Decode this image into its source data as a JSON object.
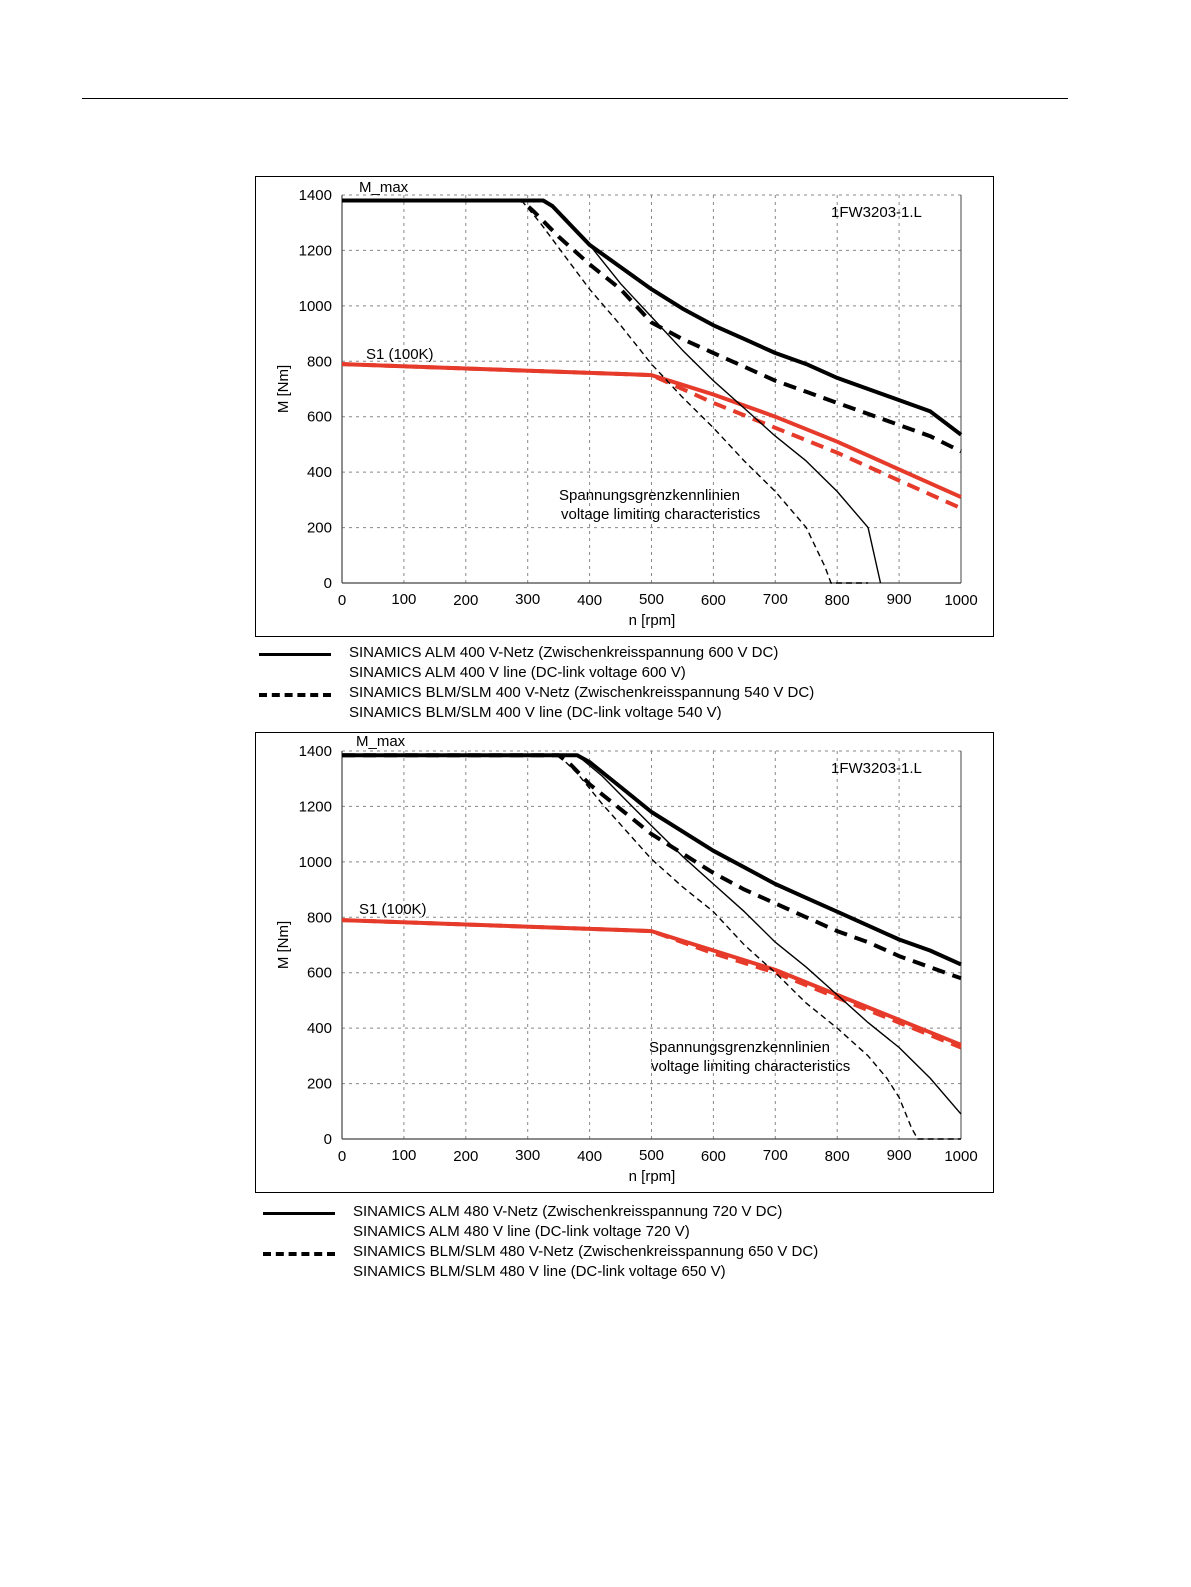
{
  "chart_data": [
    {
      "type": "line",
      "model": "1FW3203-1.L",
      "ylabel": "M [Nm]",
      "xlabel": "n [rpm]",
      "xlim": [
        0,
        1000
      ],
      "ylim": [
        0,
        1400
      ],
      "x_ticks": [
        "0",
        "100",
        "200",
        "300",
        "400",
        "500",
        "600",
        "700",
        "800",
        "900",
        "1000"
      ],
      "y_ticks": [
        "0",
        "200",
        "400",
        "600",
        "800",
        "1000",
        "1200",
        "1400"
      ],
      "grid": true,
      "labels": {
        "m_max": "M_max",
        "s1": "S1 (100K)",
        "annotation_de": "Spannungsgrenzkennlinien",
        "annotation_en": "voltage limiting characteristics"
      },
      "series": [
        {
          "style": "solid-thick",
          "color": "#000000",
          "points": [
            [
              0,
              1380
            ],
            [
              325,
              1380
            ],
            [
              340,
              1360
            ],
            [
              370,
              1290
            ],
            [
              400,
              1220
            ],
            [
              450,
              1140
            ],
            [
              500,
              1060
            ],
            [
              550,
              990
            ],
            [
              600,
              930
            ],
            [
              650,
              880
            ],
            [
              700,
              830
            ],
            [
              750,
              790
            ],
            [
              800,
              740
            ],
            [
              850,
              700
            ],
            [
              900,
              660
            ],
            [
              950,
              620
            ],
            [
              1000,
              535
            ]
          ]
        },
        {
          "style": "dashed-thick",
          "color": "#000000",
          "points": [
            [
              0,
              1380
            ],
            [
              290,
              1380
            ],
            [
              310,
              1340
            ],
            [
              350,
              1250
            ],
            [
              400,
              1150
            ],
            [
              450,
              1060
            ],
            [
              500,
              940
            ],
            [
              550,
              880
            ],
            [
              600,
              830
            ],
            [
              650,
              780
            ],
            [
              700,
              730
            ],
            [
              750,
              690
            ],
            [
              800,
              650
            ],
            [
              850,
              610
            ],
            [
              900,
              570
            ],
            [
              950,
              530
            ],
            [
              1000,
              475
            ]
          ]
        },
        {
          "style": "solid-red",
          "color": "#e63a2a",
          "points": [
            [
              0,
              790
            ],
            [
              500,
              750
            ],
            [
              600,
              680
            ],
            [
              700,
              600
            ],
            [
              800,
              510
            ],
            [
              900,
              410
            ],
            [
              1000,
              310
            ]
          ]
        },
        {
          "style": "dashed-red",
          "color": "#e63a2a",
          "points": [
            [
              0,
              790
            ],
            [
              500,
              750
            ],
            [
              600,
              650
            ],
            [
              700,
              560
            ],
            [
              800,
              470
            ],
            [
              900,
              370
            ],
            [
              1000,
              270
            ]
          ]
        },
        {
          "style": "solid-thin",
          "color": "#000000",
          "points": [
            [
              325,
              1380
            ],
            [
              360,
              1320
            ],
            [
              400,
              1220
            ],
            [
              450,
              1080
            ],
            [
              500,
              960
            ],
            [
              550,
              840
            ],
            [
              600,
              730
            ],
            [
              650,
              630
            ],
            [
              700,
              530
            ],
            [
              750,
              440
            ],
            [
              800,
              330
            ],
            [
              850,
              200
            ],
            [
              870,
              0
            ]
          ]
        },
        {
          "style": "dashed-thin",
          "color": "#000000",
          "points": [
            [
              290,
              1380
            ],
            [
              320,
              1300
            ],
            [
              360,
              1180
            ],
            [
              400,
              1060
            ],
            [
              450,
              930
            ],
            [
              500,
              790
            ],
            [
              550,
              670
            ],
            [
              600,
              560
            ],
            [
              650,
              440
            ],
            [
              700,
              330
            ],
            [
              750,
              200
            ],
            [
              780,
              60
            ],
            [
              790,
              0
            ],
            [
              850,
              0
            ]
          ]
        }
      ],
      "legend": [
        {
          "style": "solid",
          "line1": "SINAMICS ALM  400 V-Netz (Zwischenkreisspannung 600 V DC)",
          "line2": "SINAMICS ALM  400 V line (DC-link voltage 600 V)"
        },
        {
          "style": "dashed",
          "line1": "SINAMICS BLM/SLM  400 V-Netz (Zwischenkreisspannung 540 V DC)",
          "line2": "SINAMICS BLM/SLM  400 V line (DC-link voltage 540 V)"
        }
      ]
    },
    {
      "type": "line",
      "model": "1FW3203-1.L",
      "ylabel": "M [Nm]",
      "xlabel": "n [rpm]",
      "xlim": [
        0,
        1000
      ],
      "ylim": [
        0,
        1400
      ],
      "x_ticks": [
        "0",
        "100",
        "200",
        "300",
        "400",
        "500",
        "600",
        "700",
        "800",
        "900",
        "1000"
      ],
      "y_ticks": [
        "0",
        "200",
        "400",
        "600",
        "800",
        "1000",
        "1200",
        "1400"
      ],
      "grid": true,
      "labels": {
        "m_max": "M_max",
        "s1": "S1 (100K)",
        "annotation_de": "Spannungsgrenzkennlinien",
        "annotation_en": "voltage limiting characteristics"
      },
      "series": [
        {
          "style": "solid-thick",
          "color": "#000000",
          "points": [
            [
              0,
              1385
            ],
            [
              380,
              1385
            ],
            [
              400,
              1360
            ],
            [
              450,
              1270
            ],
            [
              500,
              1180
            ],
            [
              550,
              1110
            ],
            [
              600,
              1040
            ],
            [
              650,
              980
            ],
            [
              700,
              920
            ],
            [
              750,
              870
            ],
            [
              800,
              820
            ],
            [
              850,
              770
            ],
            [
              900,
              720
            ],
            [
              950,
              680
            ],
            [
              1000,
              630
            ]
          ]
        },
        {
          "style": "dashed-thick",
          "color": "#000000",
          "points": [
            [
              0,
              1385
            ],
            [
              350,
              1385
            ],
            [
              370,
              1350
            ],
            [
              400,
              1280
            ],
            [
              450,
              1190
            ],
            [
              500,
              1100
            ],
            [
              550,
              1030
            ],
            [
              600,
              960
            ],
            [
              650,
              900
            ],
            [
              700,
              850
            ],
            [
              750,
              800
            ],
            [
              800,
              750
            ],
            [
              850,
              710
            ],
            [
              900,
              660
            ],
            [
              950,
              620
            ],
            [
              1000,
              580
            ]
          ]
        },
        {
          "style": "solid-red",
          "color": "#e63a2a",
          "points": [
            [
              0,
              790
            ],
            [
              500,
              750
            ],
            [
              600,
              680
            ],
            [
              700,
              610
            ],
            [
              800,
              520
            ],
            [
              900,
              430
            ],
            [
              1000,
              340
            ]
          ]
        },
        {
          "style": "dashed-red",
          "color": "#e63a2a",
          "points": [
            [
              0,
              790
            ],
            [
              500,
              750
            ],
            [
              600,
              670
            ],
            [
              700,
              600
            ],
            [
              800,
              510
            ],
            [
              900,
              420
            ],
            [
              1000,
              330
            ]
          ]
        },
        {
          "style": "solid-thin",
          "color": "#000000",
          "points": [
            [
              380,
              1385
            ],
            [
              420,
              1310
            ],
            [
              460,
              1220
            ],
            [
              500,
              1130
            ],
            [
              550,
              1020
            ],
            [
              600,
              920
            ],
            [
              650,
              820
            ],
            [
              700,
              710
            ],
            [
              750,
              620
            ],
            [
              800,
              520
            ],
            [
              850,
              420
            ],
            [
              900,
              330
            ],
            [
              950,
              220
            ],
            [
              1000,
              90
            ]
          ]
        },
        {
          "style": "dashed-thin",
          "color": "#000000",
          "points": [
            [
              350,
              1385
            ],
            [
              380,
              1320
            ],
            [
              420,
              1210
            ],
            [
              460,
              1110
            ],
            [
              500,
              1010
            ],
            [
              550,
              910
            ],
            [
              600,
              820
            ],
            [
              650,
              700
            ],
            [
              700,
              600
            ],
            [
              750,
              490
            ],
            [
              800,
              400
            ],
            [
              850,
              300
            ],
            [
              880,
              220
            ],
            [
              900,
              150
            ],
            [
              920,
              40
            ],
            [
              930,
              0
            ],
            [
              1000,
              0
            ]
          ]
        }
      ],
      "legend": [
        {
          "style": "solid",
          "line1": "SINAMICS ALM  480 V-Netz (Zwischenkreisspannung 720 V DC)",
          "line2": "SINAMICS ALM  480 V line (DC-link voltage 720 V)"
        },
        {
          "style": "dashed",
          "line1": "SINAMICS BLM/SLM  480 V-Netz (Zwischenkreisspannung 650 V DC)",
          "line2": "SINAMICS BLM/SLM  480 V line (DC-link voltage 650 V)"
        }
      ]
    }
  ]
}
